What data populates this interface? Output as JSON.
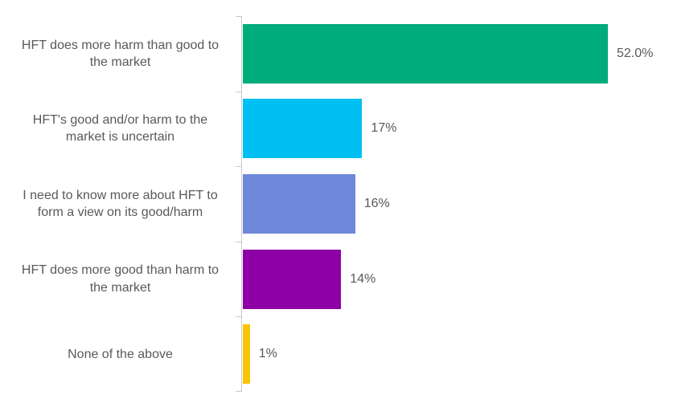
{
  "chart_data": {
    "type": "bar",
    "orientation": "horizontal",
    "title": "",
    "xlabel": "",
    "ylabel": "",
    "grid": false,
    "legend": false,
    "x_axis_ticks_visible": false,
    "categories": [
      "HFT does more harm than good to the market",
      "HFT's good and/or harm to the market is uncertain",
      "I need to know more about HFT to form a view on its good/harm",
      "HFT does more good than harm to the market",
      "None of the above"
    ],
    "categories_display": [
      "HFT does more harm than good to\nthe market",
      "HFT's good and/or harm to the\nmarket is uncertain",
      "I need to know more about HFT to\nform a view on its good/harm",
      "HFT does more good than harm to\nthe market",
      "None of the above"
    ],
    "values": [
      52.0,
      17,
      16,
      14,
      1
    ],
    "value_labels": [
      "52.0%",
      "17%",
      "16%",
      "14%",
      "1%"
    ],
    "bar_colors": [
      "#00AB7C",
      "#00BFF3",
      "#6D87D9",
      "#8C00A5",
      "#F9C402"
    ],
    "xlim": [
      0,
      61.5
    ]
  },
  "colors": {
    "background": "#FFFFFF",
    "axis": "#C9C9C9",
    "text": "#595959"
  }
}
